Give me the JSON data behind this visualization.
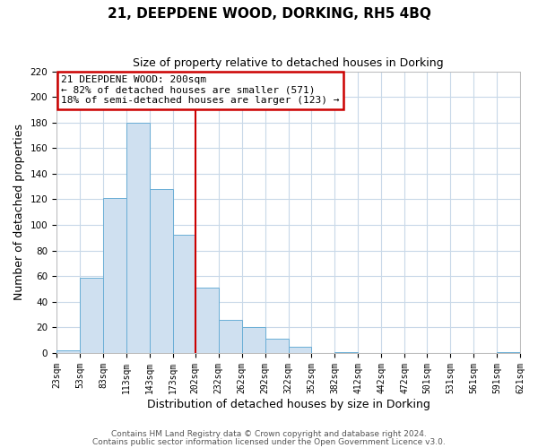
{
  "title": "21, DEEPDENE WOOD, DORKING, RH5 4BQ",
  "subtitle": "Size of property relative to detached houses in Dorking",
  "xlabel": "Distribution of detached houses by size in Dorking",
  "ylabel": "Number of detached properties",
  "bar_edges": [
    23,
    53,
    83,
    113,
    143,
    173,
    202,
    232,
    262,
    292,
    322,
    352,
    382,
    412,
    442,
    472,
    501,
    531,
    561,
    591,
    621
  ],
  "bar_heights": [
    2,
    59,
    121,
    180,
    128,
    92,
    51,
    26,
    20,
    11,
    5,
    0,
    1,
    0,
    0,
    0,
    0,
    0,
    0,
    1
  ],
  "bar_color": "#cfe0f0",
  "bar_edge_color": "#6aaed6",
  "vline_x": 202,
  "vline_color": "#cc0000",
  "annotation_title": "21 DEEPDENE WOOD: 200sqm",
  "annotation_line1": "← 82% of detached houses are smaller (571)",
  "annotation_line2": "18% of semi-detached houses are larger (123) →",
  "annotation_box_color": "#cc0000",
  "ylim": [
    0,
    220
  ],
  "yticks": [
    0,
    20,
    40,
    60,
    80,
    100,
    120,
    140,
    160,
    180,
    200,
    220
  ],
  "tick_labels": [
    "23sqm",
    "53sqm",
    "83sqm",
    "113sqm",
    "143sqm",
    "173sqm",
    "202sqm",
    "232sqm",
    "262sqm",
    "292sqm",
    "322sqm",
    "352sqm",
    "382sqm",
    "412sqm",
    "442sqm",
    "472sqm",
    "501sqm",
    "531sqm",
    "561sqm",
    "591sqm",
    "621sqm"
  ],
  "footer1": "Contains HM Land Registry data © Crown copyright and database right 2024.",
  "footer2": "Contains public sector information licensed under the Open Government Licence v3.0.",
  "bg_color": "#ffffff",
  "grid_color": "#c8d8e8",
  "title_fontsize": 11,
  "subtitle_fontsize": 9,
  "axis_label_fontsize": 9,
  "tick_fontsize": 7,
  "footer_fontsize": 6.5,
  "annotation_fontsize": 8
}
